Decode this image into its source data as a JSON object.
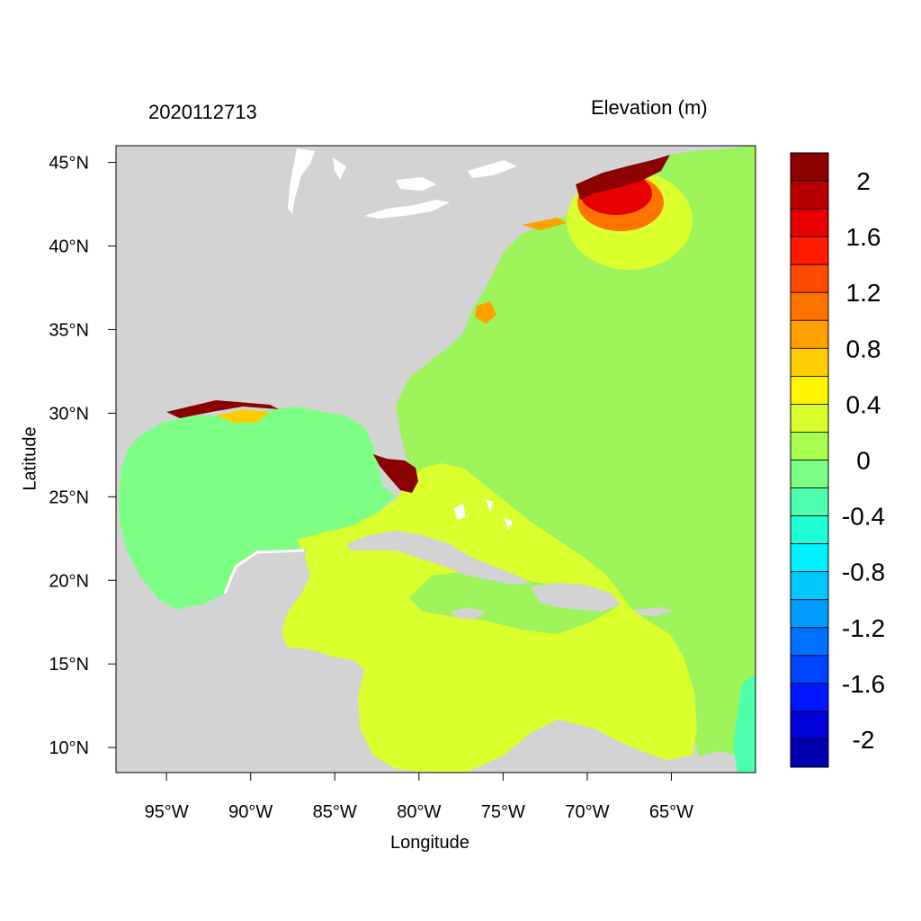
{
  "header": {
    "left_label": "2020112713",
    "right_label": "Elevation (m)"
  },
  "axes": {
    "xlabel": "Longitude",
    "ylabel": "Latitude",
    "lon_range": [
      -98,
      -60
    ],
    "lat_range": [
      8.5,
      46
    ],
    "x_ticks": [
      {
        "value": -95,
        "label": "95°W"
      },
      {
        "value": -90,
        "label": "90°W"
      },
      {
        "value": -85,
        "label": "85°W"
      },
      {
        "value": -80,
        "label": "80°W"
      },
      {
        "value": -75,
        "label": "75°W"
      },
      {
        "value": -70,
        "label": "70°W"
      },
      {
        "value": -65,
        "label": "65°W"
      }
    ],
    "y_ticks": [
      {
        "value": 45,
        "label": "45°N"
      },
      {
        "value": 40,
        "label": "40°N"
      },
      {
        "value": 35,
        "label": "35°N"
      },
      {
        "value": 30,
        "label": "30°N"
      },
      {
        "value": 25,
        "label": "25°N"
      },
      {
        "value": 20,
        "label": "20°N"
      },
      {
        "value": 15,
        "label": "15°N"
      },
      {
        "value": 10,
        "label": "10°N"
      }
    ]
  },
  "colors": {
    "land": "#d3d3d3",
    "inland_water": "#ffffff",
    "surge_max": "#8b0000",
    "open_ocean": "#9cf35a",
    "gulf": "#7dff86",
    "caribbean": "#d9ff2c"
  },
  "legend": {
    "bins": [
      {
        "color": "#8b0000"
      },
      {
        "color": "#b80000"
      },
      {
        "color": "#e60000"
      },
      {
        "color": "#ff1a00"
      },
      {
        "color": "#ff4a00"
      },
      {
        "color": "#ff7300"
      },
      {
        "color": "#ff9f00"
      },
      {
        "color": "#ffcc00"
      },
      {
        "color": "#fff500"
      },
      {
        "color": "#d9ff2c"
      },
      {
        "color": "#a8ff4f"
      },
      {
        "color": "#7dff86"
      },
      {
        "color": "#4dffad"
      },
      {
        "color": "#1fffd6"
      },
      {
        "color": "#00f0ff"
      },
      {
        "color": "#00c8ff"
      },
      {
        "color": "#009dff"
      },
      {
        "color": "#0070ff"
      },
      {
        "color": "#0043ff"
      },
      {
        "color": "#0016ff"
      },
      {
        "color": "#0000d8"
      },
      {
        "color": "#0000b0"
      }
    ],
    "labels": [
      "2",
      "1.6",
      "1.2",
      "0.8",
      "0.4",
      "0",
      "-0.4",
      "-0.8",
      "-1.2",
      "-1.6",
      "-2"
    ]
  }
}
